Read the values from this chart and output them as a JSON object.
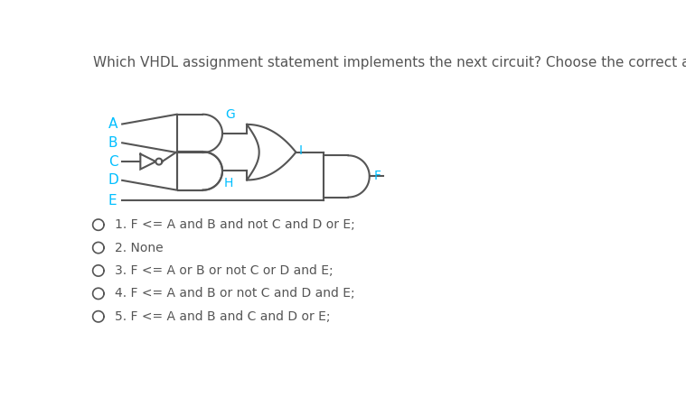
{
  "title": "Which VHDL assignment statement implements the next circuit? Choose the correct answer.",
  "title_color": "#555555",
  "title_fontsize": 11.0,
  "label_color": "#00BFFF",
  "label_fontsize": 11,
  "line_color": "#555555",
  "bg_color": "#ffffff",
  "options": [
    [
      "1.",
      "F <= A",
      " and ",
      "B",
      " and not ",
      "C",
      " and ",
      "D",
      " or ",
      "E",
      ";"
    ],
    [
      "2.",
      "None",
      "",
      "",
      "",
      "",
      "",
      "",
      "",
      "",
      ""
    ],
    [
      "3.",
      "F <= A",
      " or ",
      "B",
      " or not ",
      "C",
      " or ",
      "D",
      " and ",
      "E",
      ";"
    ],
    [
      "4.",
      "F <= A",
      " and ",
      "B",
      " or not ",
      "C",
      " and ",
      "D",
      " and ",
      "E",
      ";"
    ],
    [
      "5.",
      "F <= A",
      " and ",
      "B",
      " and ",
      "C",
      " and ",
      "D",
      " or ",
      "E",
      ";"
    ]
  ]
}
